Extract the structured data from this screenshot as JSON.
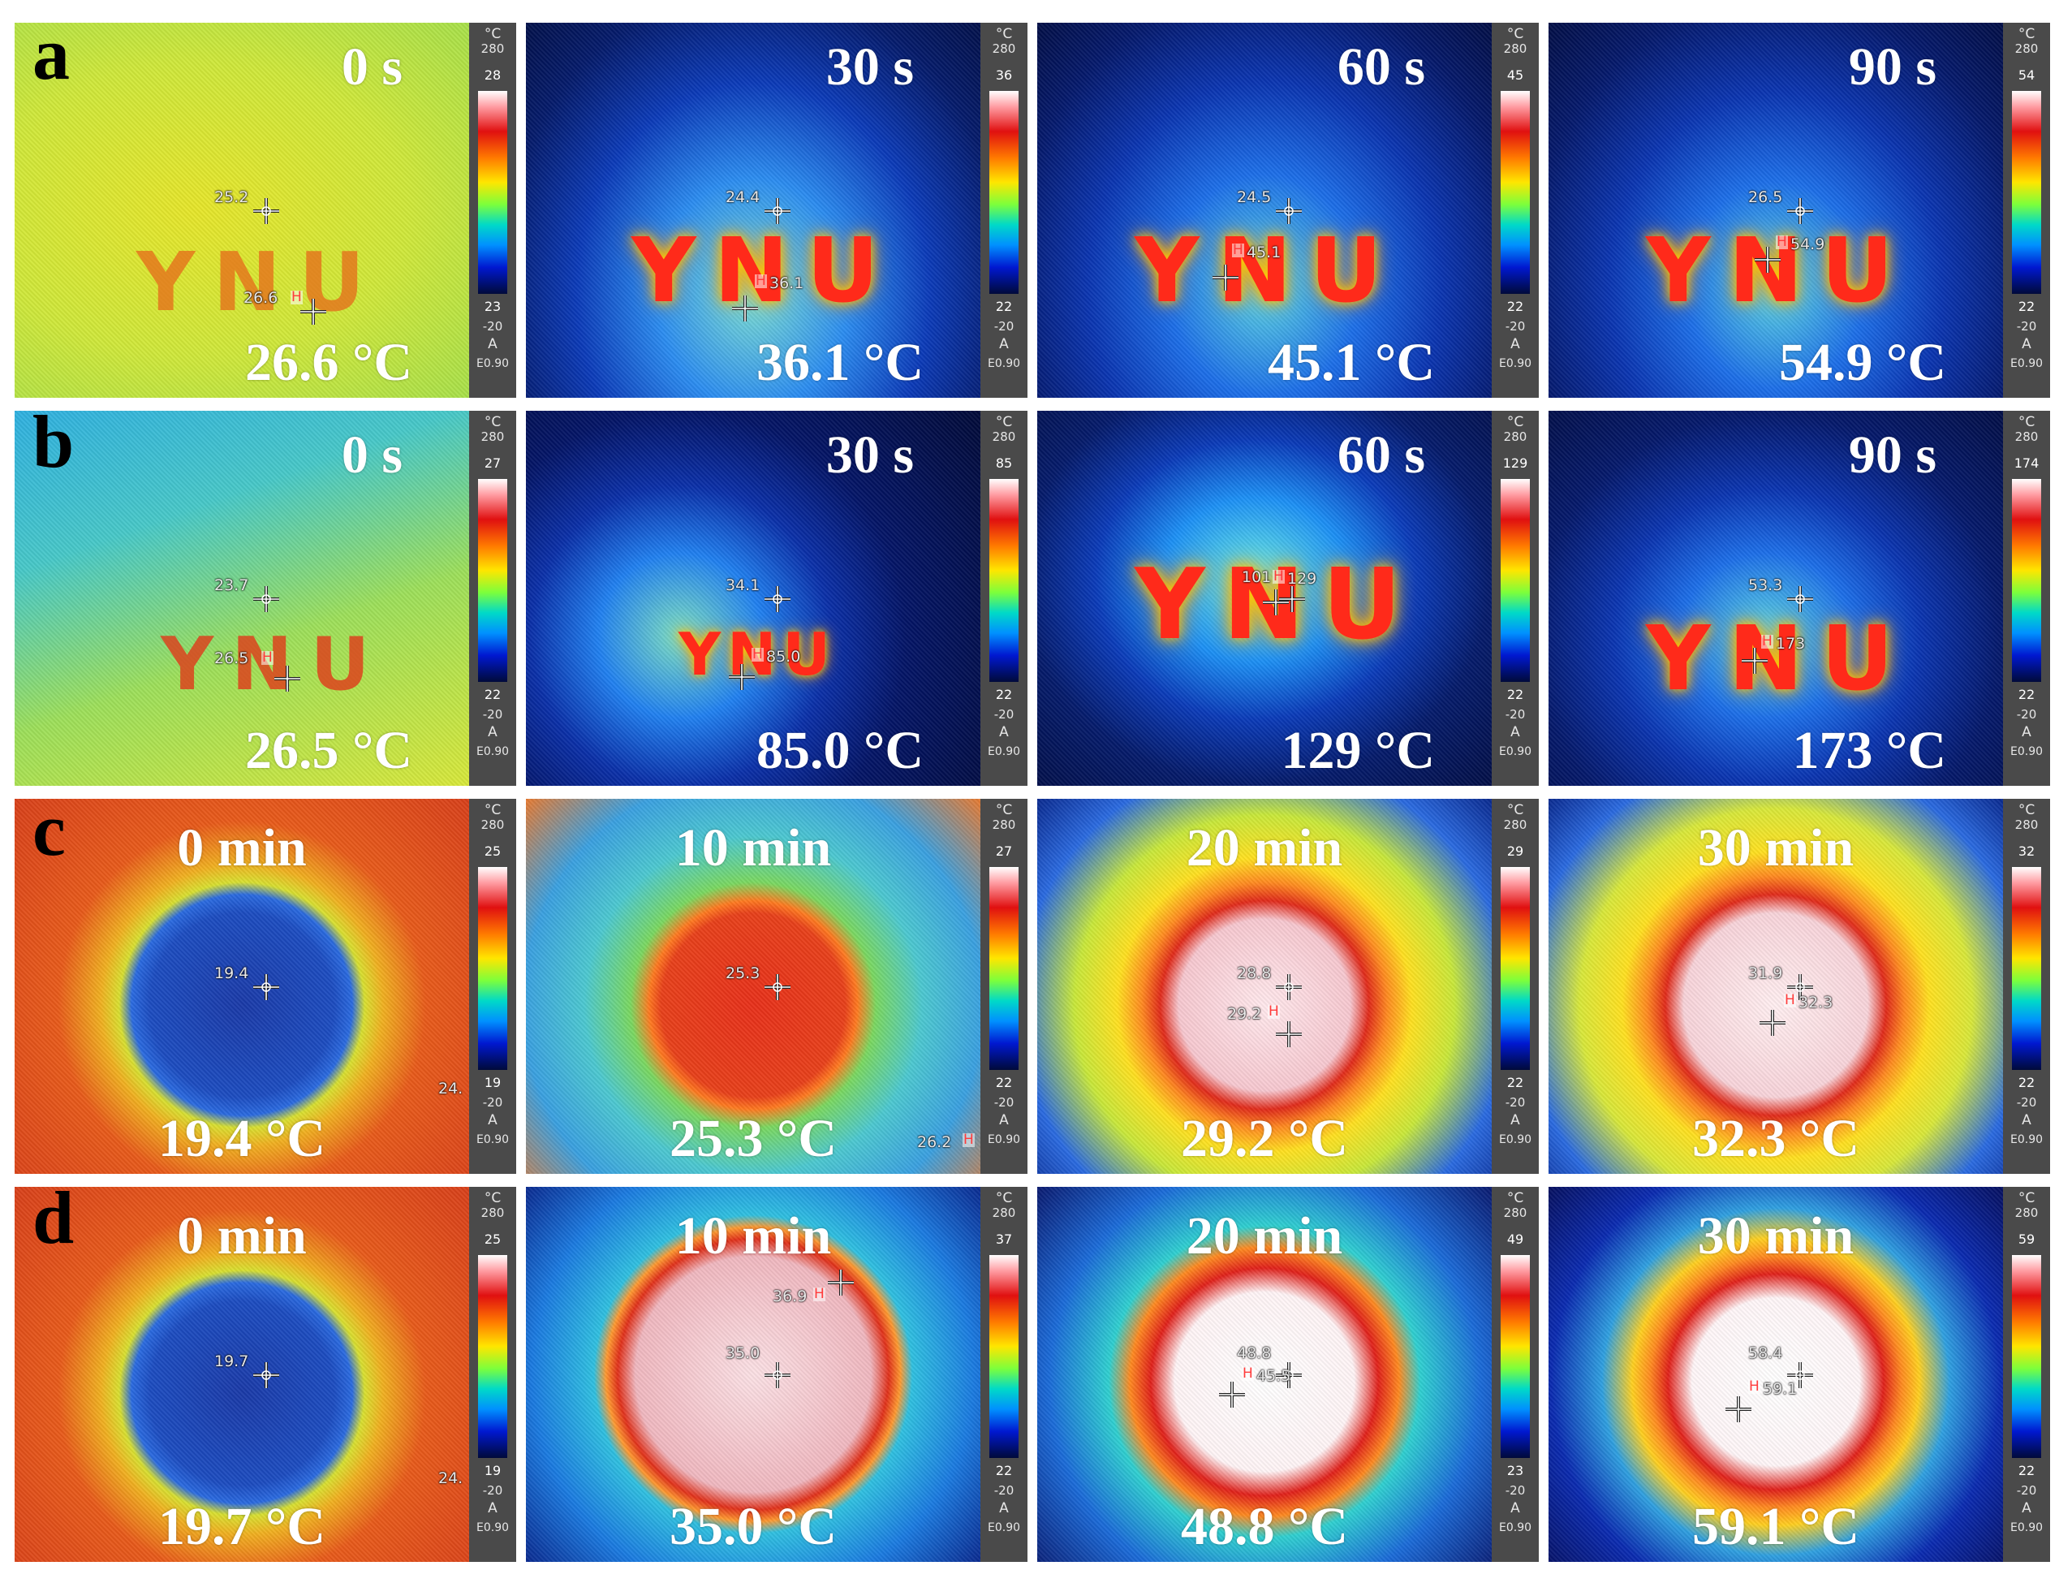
{
  "figure": {
    "rows": [
      {
        "label": "a",
        "panels": [
          {
            "time": "0 s",
            "temp": "26.6 °C",
            "scale_unit": "°C",
            "scale_range_high": "280",
            "scale_max": "28",
            "scale_min": "23",
            "scale_range_low": "-20",
            "scale_mode": "A",
            "emissivity": "E0.90",
            "spot1": "25.2",
            "spot2": "26.6"
          },
          {
            "time": "30 s",
            "temp": "36.1 °C",
            "scale_unit": "°C",
            "scale_range_high": "280",
            "scale_max": "36",
            "scale_min": "22",
            "scale_range_low": "-20",
            "scale_mode": "A",
            "emissivity": "E0.90",
            "spot1": "24.4",
            "spot2": "36.1"
          },
          {
            "time": "60 s",
            "temp": "45.1 °C",
            "scale_unit": "°C",
            "scale_range_high": "280",
            "scale_max": "45",
            "scale_min": "22",
            "scale_range_low": "-20",
            "scale_mode": "A",
            "emissivity": "E0.90",
            "spot1": "24.5",
            "spot2": "45.1"
          },
          {
            "time": "90 s",
            "temp": "54.9 °C",
            "scale_unit": "°C",
            "scale_range_high": "280",
            "scale_max": "54",
            "scale_min": "22",
            "scale_range_low": "-20",
            "scale_mode": "A",
            "emissivity": "E0.90",
            "spot1": "26.5",
            "spot2": "54.9"
          }
        ]
      },
      {
        "label": "b",
        "panels": [
          {
            "time": "0 s",
            "temp": "26.5 °C",
            "scale_unit": "°C",
            "scale_range_high": "280",
            "scale_max": "27",
            "scale_min": "22",
            "scale_range_low": "-20",
            "scale_mode": "A",
            "emissivity": "E0.90",
            "spot1": "23.7",
            "spot2": "26.5"
          },
          {
            "time": "30 s",
            "temp": "85.0 °C",
            "scale_unit": "°C",
            "scale_range_high": "280",
            "scale_max": "85",
            "scale_min": "22",
            "scale_range_low": "-20",
            "scale_mode": "A",
            "emissivity": "E0.90",
            "spot1": "34.1",
            "spot2": "85.0"
          },
          {
            "time": "60 s",
            "temp": "129 °C",
            "scale_unit": "°C",
            "scale_range_high": "280",
            "scale_max": "129",
            "scale_min": "22",
            "scale_range_low": "-20",
            "scale_mode": "A",
            "emissivity": "E0.90",
            "spot1": "101",
            "spot2": "129"
          },
          {
            "time": "90 s",
            "temp": "173 °C",
            "scale_unit": "°C",
            "scale_range_high": "280",
            "scale_max": "174",
            "scale_min": "22",
            "scale_range_low": "-20",
            "scale_mode": "A",
            "emissivity": "E0.90",
            "spot1": "53.3",
            "spot2": "173"
          }
        ]
      },
      {
        "label": "c",
        "panels": [
          {
            "time": "0 min",
            "temp": "19.4 °C",
            "scale_unit": "°C",
            "scale_range_high": "280",
            "scale_max": "25",
            "scale_min": "19",
            "scale_range_low": "-20",
            "scale_mode": "A",
            "emissivity": "E0.90",
            "spot1": "19.4",
            "spot2": "24."
          },
          {
            "time": "10 min",
            "temp": "25.3 °C",
            "scale_unit": "°C",
            "scale_range_high": "280",
            "scale_max": "27",
            "scale_min": "22",
            "scale_range_low": "-20",
            "scale_mode": "A",
            "emissivity": "E0.90",
            "spot1": "25.3",
            "spot2": "26.2"
          },
          {
            "time": "20 min",
            "temp": "29.2 °C",
            "scale_unit": "°C",
            "scale_range_high": "280",
            "scale_max": "29",
            "scale_min": "22",
            "scale_range_low": "-20",
            "scale_mode": "A",
            "emissivity": "E0.90",
            "spot1": "28.8",
            "spot2": "29.2"
          },
          {
            "time": "30 min",
            "temp": "32.3 °C",
            "scale_unit": "°C",
            "scale_range_high": "280",
            "scale_max": "32",
            "scale_min": "22",
            "scale_range_low": "-20",
            "scale_mode": "A",
            "emissivity": "E0.90",
            "spot1": "31.9",
            "spot2": "32.3"
          }
        ]
      },
      {
        "label": "d",
        "panels": [
          {
            "time": "0 min",
            "temp": "19.7 °C",
            "scale_unit": "°C",
            "scale_range_high": "280",
            "scale_max": "25",
            "scale_min": "19",
            "scale_range_low": "-20",
            "scale_mode": "A",
            "emissivity": "E0.90",
            "spot1": "19.7",
            "spot2": "24."
          },
          {
            "time": "10 min",
            "temp": "35.0 °C",
            "scale_unit": "°C",
            "scale_range_high": "280",
            "scale_max": "37",
            "scale_min": "22",
            "scale_range_low": "-20",
            "scale_mode": "A",
            "emissivity": "E0.90",
            "spot1": "35.0",
            "spot2": "36.9"
          },
          {
            "time": "20 min",
            "temp": "48.8 °C",
            "scale_unit": "°C",
            "scale_range_high": "280",
            "scale_max": "49",
            "scale_min": "23",
            "scale_range_low": "-20",
            "scale_mode": "A",
            "emissivity": "E0.90",
            "spot1": "48.8",
            "spot2": "45.5"
          },
          {
            "time": "30 min",
            "temp": "59.1 °C",
            "scale_unit": "°C",
            "scale_range_high": "280",
            "scale_max": "59",
            "scale_min": "22",
            "scale_range_low": "-20",
            "scale_mode": "A",
            "emissivity": "E0.90",
            "spot1": "58.4",
            "spot2": "59.1"
          }
        ]
      }
    ],
    "sample_text": "YNU",
    "hotspot_marker": "H"
  }
}
